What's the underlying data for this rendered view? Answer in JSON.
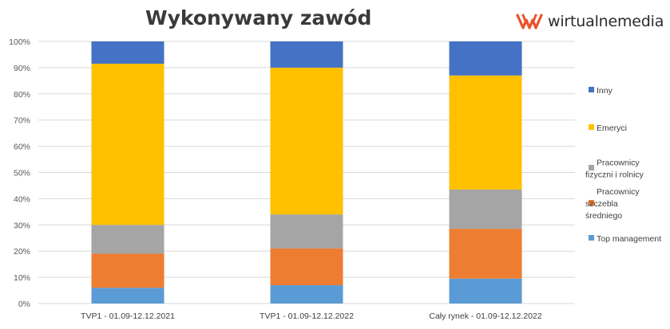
{
  "title": "Wykonywany zawód",
  "logo": {
    "text": "wirtualnemedia",
    "color": "#e8542a"
  },
  "chart_data": {
    "type": "bar",
    "stacked": "percent",
    "categories": [
      "TVP1 - 01.09-12.12.2021",
      "TVP1 - 01.09-12.12.2022",
      "Cały rynek - 01.09-12.12.2022"
    ],
    "series": [
      {
        "name": "Top management",
        "color": "#5b9bd5",
        "values": [
          6,
          7,
          9.5
        ]
      },
      {
        "name": "Pracownicy szczebla średniego",
        "color": "#ed7d31",
        "values": [
          13,
          14,
          19
        ]
      },
      {
        "name": "Pracownicy fizyczni i rolnicy",
        "color": "#a5a5a5",
        "values": [
          11,
          13,
          15
        ]
      },
      {
        "name": "Emeryci",
        "color": "#ffc000",
        "values": [
          61.5,
          56,
          43.5
        ]
      },
      {
        "name": "Inny",
        "color": "#4472c4",
        "values": [
          8.5,
          10,
          13
        ]
      }
    ],
    "y_ticks": [
      "0%",
      "10%",
      "20%",
      "30%",
      "40%",
      "50%",
      "60%",
      "70%",
      "80%",
      "90%",
      "100%"
    ],
    "ylim": [
      0,
      100
    ],
    "grid": true,
    "legend": "right"
  }
}
